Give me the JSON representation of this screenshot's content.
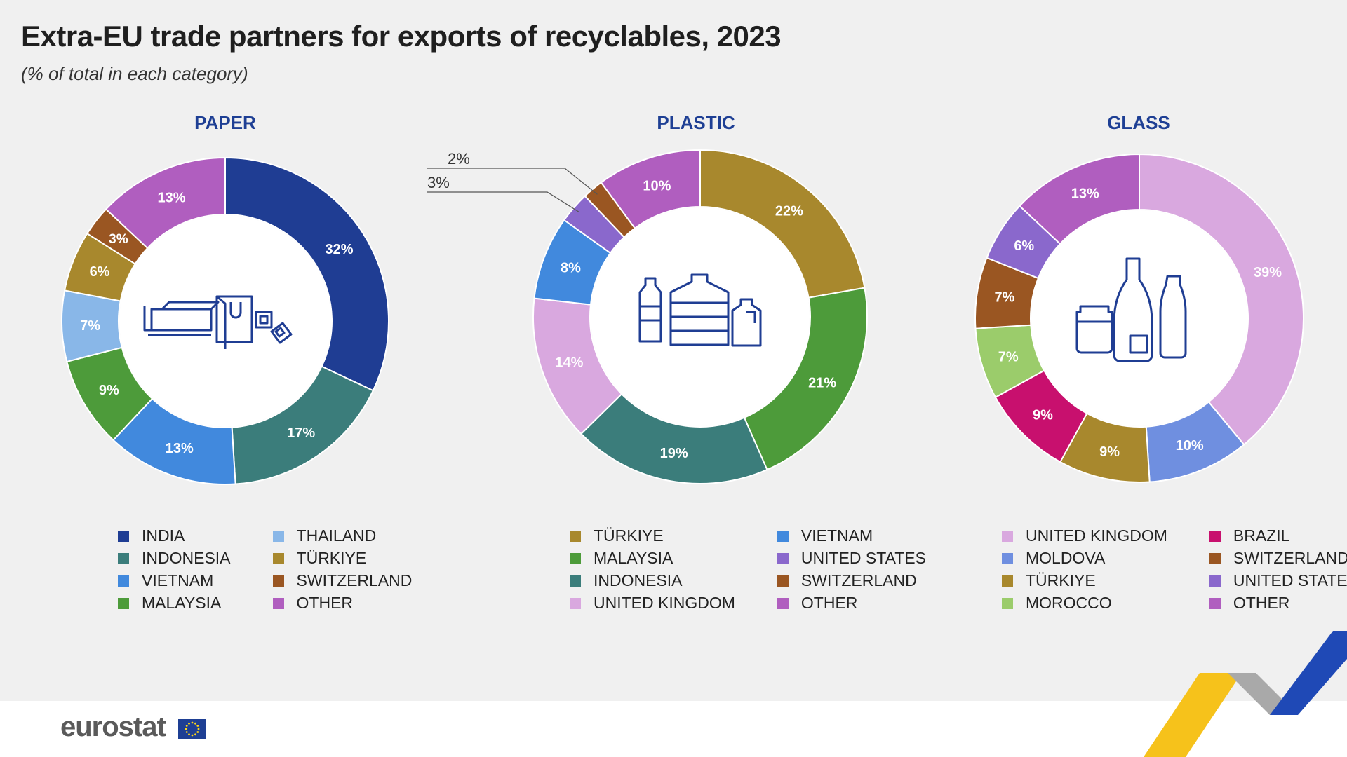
{
  "title": "Extra-EU trade partners for exports of recyclables, 2023",
  "subtitle": "(% of total in each category)",
  "footer": {
    "logo_text": "eurostat"
  },
  "chart_data": [
    {
      "type": "donut",
      "title": "PAPER",
      "icon": "paper-products-icon",
      "categories": [
        "INDIA",
        "INDONESIA",
        "VIETNAM",
        "MALAYSIA",
        "THAILAND",
        "TÜRKIYE",
        "SWITZERLAND",
        "OTHER"
      ],
      "values": [
        32,
        17,
        13,
        9,
        7,
        6,
        3,
        13
      ],
      "labels": [
        "32%",
        "17%",
        "13%",
        "9%",
        "7%",
        "6%",
        "3%",
        "13%"
      ],
      "colors": [
        "#1f3d93",
        "#3b7d7b",
        "#4189dd",
        "#4d9b3a",
        "#89b7e8",
        "#a8882d",
        "#9a5622",
        "#b05ebf"
      ],
      "legend_order": [
        "INDIA",
        "INDONESIA",
        "VIETNAM",
        "MALAYSIA",
        "THAILAND",
        "TÜRKIYE",
        "SWITZERLAND",
        "OTHER"
      ]
    },
    {
      "type": "donut",
      "title": "PLASTIC",
      "icon": "plastic-bottles-icon",
      "categories": [
        "TÜRKIYE",
        "MALAYSIA",
        "INDONESIA",
        "UNITED KINGDOM",
        "VIETNAM",
        "UNITED STATES",
        "SWITZERLAND",
        "OTHER"
      ],
      "values": [
        22,
        21,
        19,
        14,
        8,
        3,
        2,
        10
      ],
      "labels": [
        "22%",
        "21%",
        "19%",
        "14%",
        "8%",
        "3%",
        "2%",
        "10%"
      ],
      "colors": [
        "#a8882d",
        "#4d9b3a",
        "#3b7d7b",
        "#d9a8df",
        "#4189dd",
        "#8a68cc",
        "#9a5622",
        "#b05ebf"
      ],
      "legend_order": [
        "TÜRKIYE",
        "MALAYSIA",
        "INDONESIA",
        "UNITED KINGDOM",
        "VIETNAM",
        "UNITED STATES",
        "SWITZERLAND",
        "OTHER"
      ]
    },
    {
      "type": "donut",
      "title": "GLASS",
      "icon": "glass-containers-icon",
      "categories": [
        "UNITED KINGDOM",
        "MOLDOVA",
        "TÜRKIYE",
        "BRAZIL",
        "MOROCCO",
        "SWITZERLAND",
        "UNITED STATES",
        "OTHER"
      ],
      "values": [
        39,
        10,
        9,
        9,
        7,
        7,
        6,
        13
      ],
      "labels": [
        "39%",
        "10%",
        "9%",
        "9%",
        "7%",
        "7%",
        "6%",
        "13%"
      ],
      "colors": [
        "#d9a8df",
        "#6f8fe0",
        "#a8882d",
        "#c8106e",
        "#9bcc6b",
        "#9a5622",
        "#8a68cc",
        "#b05ebf"
      ],
      "legend_order": [
        "UNITED KINGDOM",
        "MOLDOVA",
        "TÜRKIYE",
        "MOROCCO",
        "BRAZIL",
        "SWITZERLAND",
        "UNITED STATES",
        "OTHER"
      ]
    }
  ]
}
